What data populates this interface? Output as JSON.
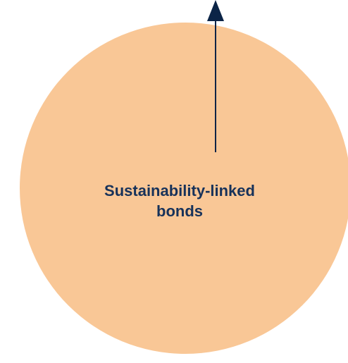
{
  "diagram": {
    "label": "Sustainability-linked\nbonds",
    "circle_color": "#f9c796",
    "text_color": "#17325a",
    "arrow_color": "#0b2447"
  }
}
